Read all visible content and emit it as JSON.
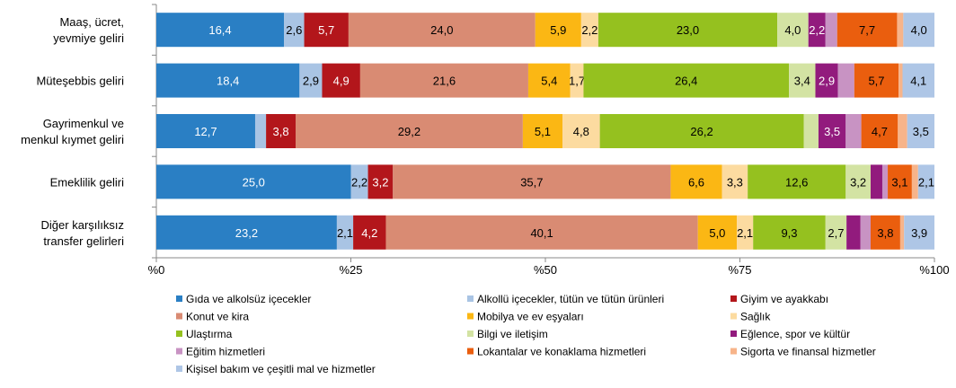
{
  "chart_data": {
    "type": "bar",
    "orientation": "horizontal",
    "stacked": true,
    "title": "",
    "xlabel": "",
    "ylabel": "",
    "xlim": [
      0,
      100
    ],
    "x_ticks": [
      "%0",
      "%25",
      "%50",
      "%75",
      "%100"
    ],
    "grid": false,
    "legend_position": "bottom",
    "categories": [
      "Maaş, ücret,\nyevmiye geliri",
      "Müteşebbis geliri",
      "Gayrimenkul ve\nmenkul kıymet geliri",
      "Emeklilik geliri",
      "Diğer karşılıksız\ntransfer gelirleri"
    ],
    "series": [
      {
        "name": "Gıda ve alkolsüz içecekler",
        "color": "#2a7fc4",
        "values": [
          16.4,
          18.4,
          12.7,
          25.0,
          23.2
        ],
        "labels": [
          "16,4",
          "18,4",
          "12,7",
          "25,0",
          "23,2"
        ]
      },
      {
        "name": "Alkollü içecekler, tütün ve tütün ürünleri",
        "color": "#a9c4e4",
        "values": [
          2.6,
          2.9,
          1.4,
          2.2,
          2.1
        ],
        "labels": [
          "2,6",
          "2,9",
          null,
          "2,2",
          "2,1"
        ]
      },
      {
        "name": "Giyim ve ayakkabı",
        "color": "#b3161b",
        "values": [
          5.7,
          4.9,
          3.8,
          3.2,
          4.2
        ],
        "labels": [
          "5,7",
          "4,9",
          "3,8",
          "3,2",
          "4,2"
        ]
      },
      {
        "name": "Konut ve kira",
        "color": "#d98b73",
        "values": [
          24.0,
          21.6,
          29.2,
          35.7,
          40.1
        ],
        "labels": [
          "24,0",
          "21,6",
          "29,2",
          "35,7",
          "40,1"
        ]
      },
      {
        "name": "Mobilya ve ev eşyaları",
        "color": "#fbb714",
        "values": [
          5.9,
          5.4,
          5.1,
          6.6,
          5.0
        ],
        "labels": [
          "5,9",
          "5,4",
          "5,1",
          "6,6",
          "5,0"
        ]
      },
      {
        "name": "Sağlık",
        "color": "#fcdba0",
        "values": [
          2.2,
          1.7,
          4.8,
          3.3,
          2.1
        ],
        "labels": [
          "2,2",
          "1,7",
          "4,8",
          "3,3",
          "2,1"
        ]
      },
      {
        "name": "Ulaştırma",
        "color": "#95c11f",
        "values": [
          23.0,
          26.4,
          26.2,
          12.6,
          9.3
        ],
        "labels": [
          "23,0",
          "26,4",
          "26,2",
          "12,6",
          "9,3"
        ]
      },
      {
        "name": "Bilgi ve iletişim",
        "color": "#d3e3a3",
        "values": [
          4.0,
          3.4,
          1.9,
          3.2,
          2.7
        ],
        "labels": [
          "4,0",
          "3,4",
          null,
          "3,2",
          "2,7"
        ]
      },
      {
        "name": "Eğlence, spor ve kültür",
        "color": "#921b7d",
        "values": [
          2.2,
          2.9,
          3.5,
          1.5,
          1.8
        ],
        "labels": [
          "2,2",
          "2,9",
          "3,5",
          null,
          null
        ]
      },
      {
        "name": "Eğitim hizmetleri",
        "color": "#c893c3",
        "values": [
          1.5,
          2.1,
          2.0,
          0.7,
          1.3
        ],
        "labels": [
          null,
          null,
          null,
          null,
          null
        ]
      },
      {
        "name": "Lokantalar ve konaklama hizmetleri",
        "color": "#ea5e0e",
        "values": [
          7.7,
          5.7,
          4.7,
          3.1,
          3.8
        ],
        "labels": [
          "7,7",
          "5,7",
          "4,7",
          "3,1",
          "3,8"
        ]
      },
      {
        "name": "Sigorta ve finansal hizmetler",
        "color": "#f7b48a",
        "values": [
          0.8,
          0.5,
          1.2,
          0.8,
          0.5
        ],
        "labels": [
          null,
          null,
          null,
          null,
          null
        ]
      },
      {
        "name": "Kişisel bakım ve çeşitli mal ve hizmetler",
        "color": "#aec6e6",
        "values": [
          4.0,
          4.1,
          3.5,
          2.1,
          3.9
        ],
        "labels": [
          "4,0",
          "4,1",
          "3,5",
          "2,1",
          "3,9"
        ]
      }
    ],
    "white_label_series": [
      "Gıda ve alkolsüz içecekler",
      "Giyim ve ayakkabı",
      "Eğlence, spor ve kültür"
    ]
  }
}
